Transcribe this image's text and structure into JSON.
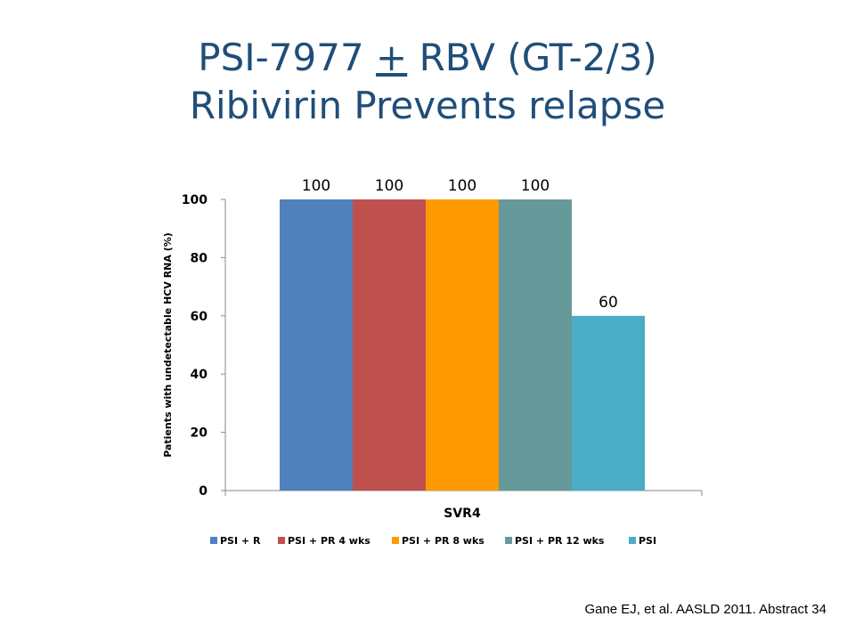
{
  "slide": {
    "title_part1": "PSI-7977 ",
    "title_pm": "+",
    "title_part2": " RBV (GT-2/3)",
    "subtitle": "Ribivirin Prevents relapse",
    "citation": "Gane EJ, et al. AASLD 2011. Abstract 34"
  },
  "chart_data": {
    "type": "bar",
    "categories": [
      "SVR4"
    ],
    "series": [
      {
        "name": "PSI + R",
        "values": [
          100
        ],
        "color": "#4f81bd"
      },
      {
        "name": "PSI + PR 4 wks",
        "values": [
          100
        ],
        "color": "#c0504d"
      },
      {
        "name": "PSI + PR 8 wks",
        "values": [
          100
        ],
        "color": "#ff9900"
      },
      {
        "name": "PSI + PR 12 wks",
        "values": [
          100
        ],
        "color": "#669999"
      },
      {
        "name": "PSI",
        "values": [
          60
        ],
        "color": "#4bacc6"
      }
    ],
    "title": "",
    "xlabel": "",
    "ylabel": "Patients with undetectable HCV RNA (%)",
    "ylim": [
      0,
      100
    ],
    "yticks": [
      0,
      20,
      40,
      60,
      80,
      100
    ],
    "data_labels": true,
    "grid": false,
    "legend_position": "bottom"
  }
}
